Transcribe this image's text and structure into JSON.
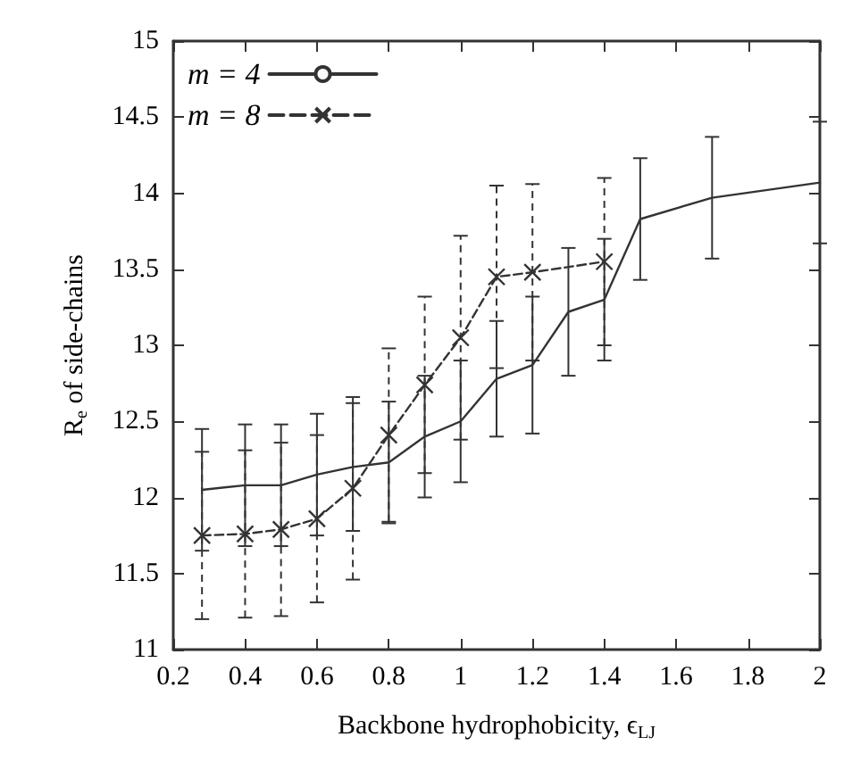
{
  "chart_data": {
    "type": "line",
    "xlabel": "Backbone hydrophobicity, ϵ$_{LJ}$",
    "ylabel": "R$_{e}$ of side-chains",
    "xlim": [
      0.2,
      2
    ],
    "xticks": [
      0.2,
      0.4,
      0.6,
      0.8,
      1,
      1.2,
      1.4,
      1.6,
      1.8,
      2
    ],
    "ylim": [
      11,
      15
    ],
    "yticks": [
      11,
      11.5,
      12,
      12.5,
      13,
      13.5,
      14,
      14.5,
      15
    ],
    "grid": false,
    "legend": "top left",
    "series": [
      {
        "name": "m = 4",
        "color": "#333333",
        "line_style": "solid",
        "marker": "none",
        "x": [
          0.28,
          0.4,
          0.5,
          0.6,
          0.7,
          0.8,
          0.9,
          1,
          1.1,
          1.2,
          1.3,
          1.4,
          1.5,
          1.7,
          2
        ],
        "values": [
          12.05,
          12.08,
          12.08,
          12.15,
          12.2,
          12.23,
          12.4,
          12.5,
          12.78,
          12.87,
          13.22,
          13.3,
          13.83,
          13.97,
          14.07
        ],
        "errors": [
          0.4,
          0.4,
          0.4,
          0.4,
          0.42,
          0.4,
          0.4,
          0.4,
          0.38,
          0.45,
          0.42,
          0.4,
          0.4,
          0.4,
          0.4
        ]
      },
      {
        "name": "m = 8",
        "color": "#333333",
        "line_style": "dashed",
        "marker": "cross",
        "x": [
          0.28,
          0.4,
          0.5,
          0.6,
          0.7,
          0.8,
          0.9,
          1,
          1.1,
          1.2,
          1.4
        ],
        "values": [
          11.75,
          11.76,
          11.79,
          11.86,
          12.06,
          12.41,
          12.74,
          13.05,
          13.45,
          13.48,
          13.55
        ],
        "errors": [
          0.55,
          0.55,
          0.57,
          0.55,
          0.6,
          0.57,
          0.58,
          0.67,
          0.6,
          0.58,
          0.55
        ]
      }
    ]
  }
}
